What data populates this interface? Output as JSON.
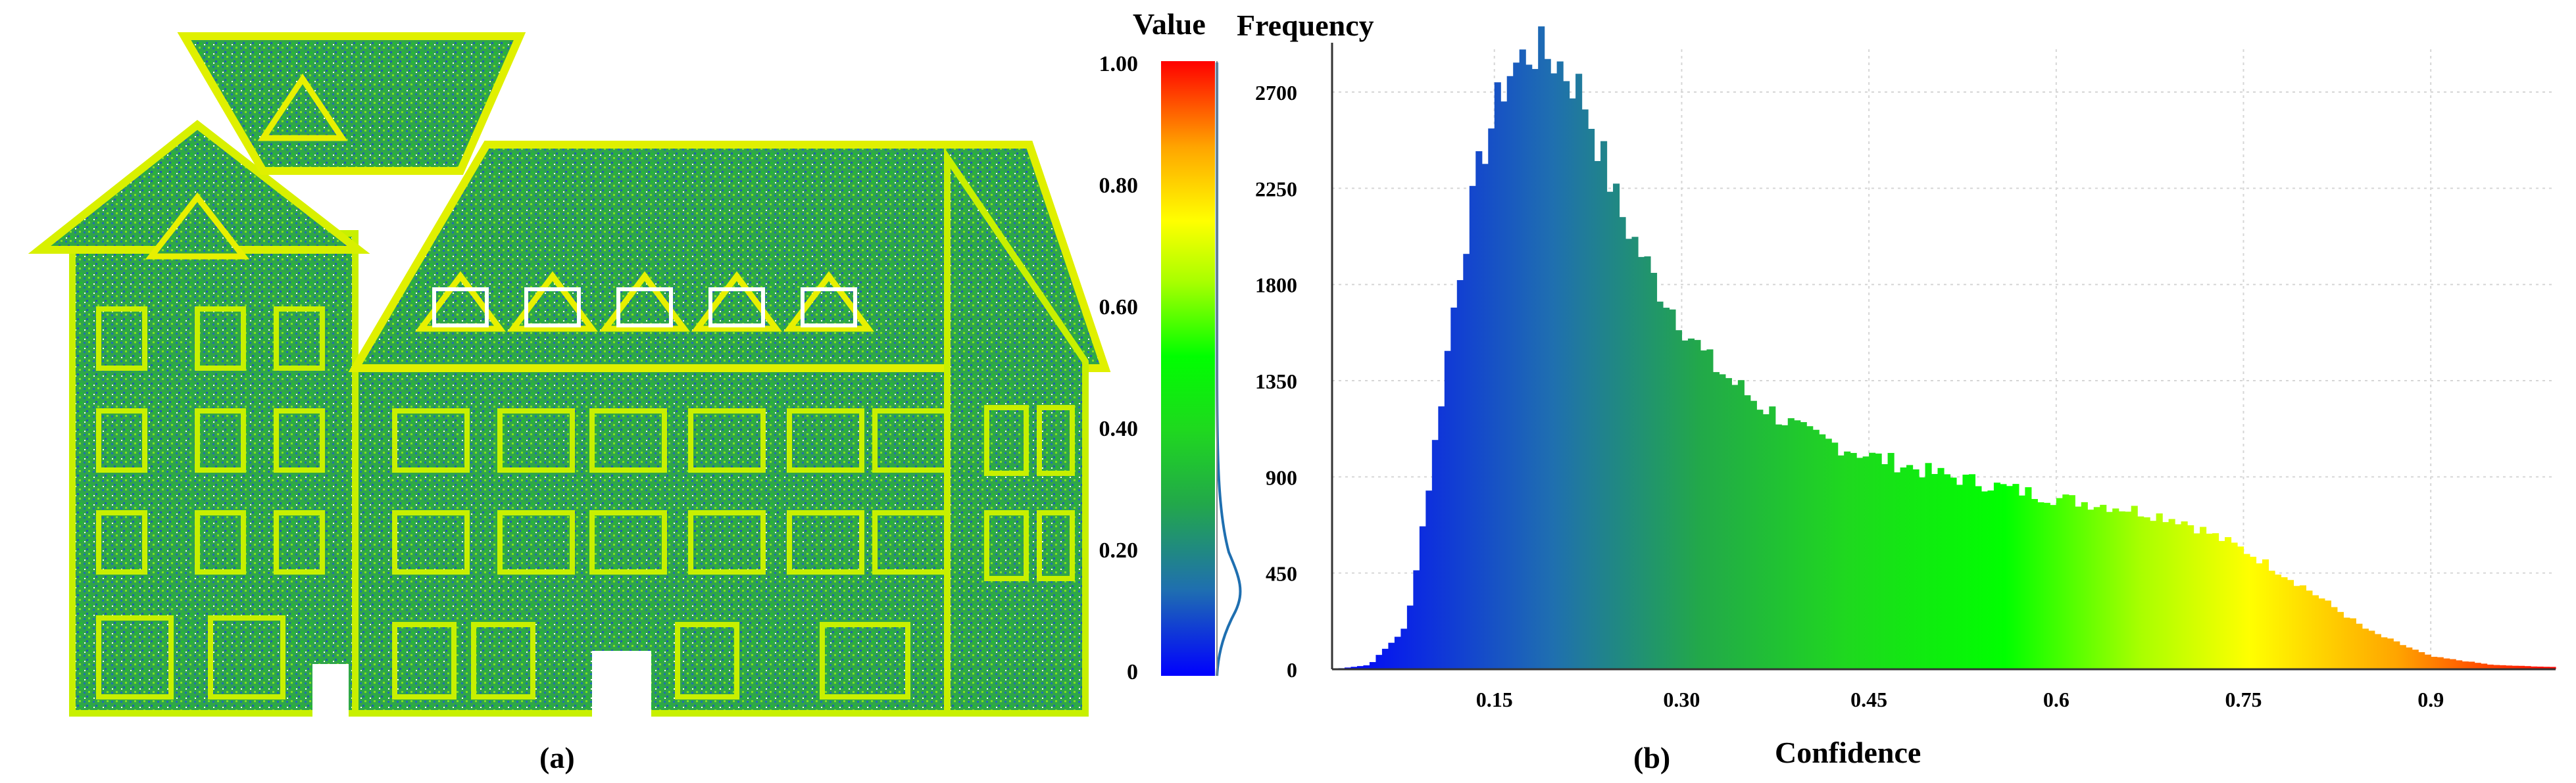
{
  "panel_a": {
    "label": "(a)",
    "colorbar": {
      "title": "Value",
      "ticks": [
        "1.00",
        "0.80",
        "0.60",
        "0.40",
        "0.20",
        "0"
      ],
      "tick_values": [
        1.0,
        0.8,
        0.6,
        0.4,
        0.2,
        0.0
      ],
      "colormap": [
        "#0000ff",
        "#1f6fb0",
        "#22a84a",
        "#1fd81f",
        "#00ff00",
        "#a8ff00",
        "#ffff00",
        "#ffa500",
        "#ff0000"
      ]
    }
  },
  "panel_b": {
    "label": "(b)"
  },
  "chart_data": {
    "type": "bar",
    "title": "",
    "xlabel": "Confidence",
    "ylabel": "Frequency",
    "xlim": [
      0.02,
      1.0
    ],
    "ylim": [
      0,
      2900
    ],
    "x_ticks": [
      0.15,
      0.3,
      0.45,
      0.6,
      0.75,
      0.9
    ],
    "x_tick_labels": [
      "0.15",
      "0.30",
      "0.45",
      "0.6",
      "0.75",
      "0.9"
    ],
    "y_ticks": [
      0,
      450,
      900,
      1350,
      1800,
      2250,
      2700
    ],
    "y_tick_labels": [
      "0",
      "450",
      "900",
      "1350",
      "1800",
      "2250",
      "2700"
    ],
    "grid": true,
    "bin_width": 0.005,
    "series": [
      {
        "x": [
          0.02,
          0.05,
          0.08,
          0.1,
          0.12,
          0.14,
          0.16,
          0.18,
          0.2,
          0.22,
          0.25,
          0.28,
          0.32,
          0.36,
          0.4,
          0.45,
          0.5,
          0.55,
          0.6,
          0.65,
          0.7,
          0.75,
          0.8,
          0.85,
          0.9,
          0.95,
          1.0
        ],
        "values": [
          0,
          20,
          200,
          950,
          1800,
          2400,
          2780,
          2900,
          2850,
          2700,
          2150,
          1800,
          1450,
          1250,
          1100,
          1000,
          920,
          860,
          800,
          760,
          700,
          560,
          380,
          180,
          60,
          20,
          10
        ]
      }
    ]
  }
}
